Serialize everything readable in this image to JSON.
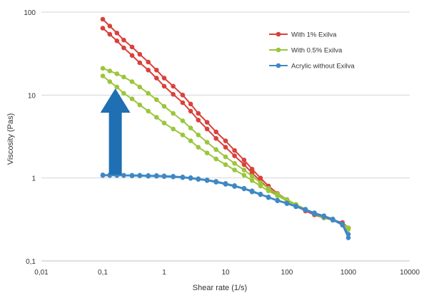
{
  "chart_data": {
    "type": "line",
    "xlabel": "Shear rate (1/s)",
    "ylabel": "Viscosity (Pas)",
    "x_scale": "log",
    "y_scale": "log",
    "xlim": [
      0.01,
      10000
    ],
    "ylim": [
      0.1,
      100
    ],
    "x_tick_labels": [
      "0,01",
      "0,1",
      "1",
      "10",
      "100",
      "1000",
      "10000"
    ],
    "y_tick_labels": [
      "0,1",
      "1",
      "10",
      "100"
    ],
    "grid": "horizontal",
    "legend_position": "top-right",
    "series": [
      {
        "name": "With 1% Exilva",
        "color": "#d9413b",
        "curves": [
          [
            [
              0.1,
              82
            ],
            [
              0.13,
              68
            ],
            [
              0.17,
              56
            ],
            [
              0.22,
              46
            ],
            [
              0.3,
              38
            ],
            [
              0.4,
              31
            ],
            [
              0.55,
              25
            ],
            [
              0.75,
              20
            ],
            [
              1,
              16
            ],
            [
              1.4,
              12.8
            ],
            [
              2,
              10
            ],
            [
              2.7,
              7.8
            ],
            [
              3.6,
              6
            ],
            [
              5,
              4.7
            ],
            [
              7,
              3.6
            ],
            [
              10,
              2.8
            ],
            [
              14,
              2.15
            ],
            [
              20,
              1.65
            ],
            [
              27,
              1.28
            ],
            [
              37,
              1
            ],
            [
              50,
              0.8
            ],
            [
              70,
              0.65
            ],
            [
              100,
              0.55
            ],
            [
              140,
              0.47
            ],
            [
              200,
              0.41
            ],
            [
              280,
              0.36
            ],
            [
              400,
              0.33
            ],
            [
              560,
              0.31
            ],
            [
              800,
              0.29
            ],
            [
              1000,
              0.25
            ]
          ],
          [
            [
              0.1,
              64
            ],
            [
              0.13,
              54
            ],
            [
              0.17,
              45
            ],
            [
              0.22,
              37
            ],
            [
              0.3,
              30
            ],
            [
              0.4,
              24.5
            ],
            [
              0.55,
              20
            ],
            [
              0.75,
              16
            ],
            [
              1,
              12.8
            ],
            [
              1.4,
              10.2
            ],
            [
              2,
              8.1
            ],
            [
              2.7,
              6.4
            ],
            [
              3.6,
              5
            ],
            [
              5,
              3.9
            ],
            [
              7,
              3
            ],
            [
              10,
              2.35
            ],
            [
              14,
              1.85
            ],
            [
              20,
              1.45
            ],
            [
              27,
              1.15
            ],
            [
              37,
              0.92
            ],
            [
              50,
              0.75
            ],
            [
              70,
              0.62
            ],
            [
              100,
              0.53
            ],
            [
              140,
              0.46
            ],
            [
              200,
              0.4
            ],
            [
              280,
              0.36
            ],
            [
              400,
              0.33
            ],
            [
              560,
              0.31
            ],
            [
              800,
              0.29
            ],
            [
              1000,
              0.25
            ]
          ]
        ]
      },
      {
        "name": "With 0.5% Exilva",
        "color": "#9bc63b",
        "curves": [
          [
            [
              0.1,
              21
            ],
            [
              0.13,
              19.5
            ],
            [
              0.17,
              18
            ],
            [
              0.22,
              16.5
            ],
            [
              0.3,
              14.5
            ],
            [
              0.4,
              12.5
            ],
            [
              0.55,
              10.5
            ],
            [
              0.75,
              8.8
            ],
            [
              1,
              7.3
            ],
            [
              1.4,
              6
            ],
            [
              2,
              4.9
            ],
            [
              2.7,
              4
            ],
            [
              3.6,
              3.3
            ],
            [
              5,
              2.7
            ],
            [
              7,
              2.2
            ],
            [
              10,
              1.8
            ],
            [
              14,
              1.5
            ],
            [
              20,
              1.25
            ],
            [
              27,
              1.05
            ],
            [
              37,
              0.88
            ],
            [
              50,
              0.75
            ],
            [
              70,
              0.64
            ],
            [
              100,
              0.55
            ],
            [
              140,
              0.48
            ],
            [
              200,
              0.42
            ],
            [
              280,
              0.37
            ],
            [
              400,
              0.34
            ],
            [
              560,
              0.31
            ],
            [
              800,
              0.28
            ],
            [
              1000,
              0.25
            ]
          ],
          [
            [
              0.1,
              17
            ],
            [
              0.13,
              14.5
            ],
            [
              0.17,
              12.5
            ],
            [
              0.22,
              10.5
            ],
            [
              0.3,
              9
            ],
            [
              0.4,
              7.6
            ],
            [
              0.55,
              6.4
            ],
            [
              0.75,
              5.4
            ],
            [
              1,
              4.6
            ],
            [
              1.4,
              3.9
            ],
            [
              2,
              3.3
            ],
            [
              2.7,
              2.8
            ],
            [
              3.6,
              2.35
            ],
            [
              5,
              2
            ],
            [
              7,
              1.7
            ],
            [
              10,
              1.45
            ],
            [
              14,
              1.25
            ],
            [
              20,
              1.08
            ],
            [
              27,
              0.93
            ],
            [
              37,
              0.8
            ],
            [
              50,
              0.7
            ],
            [
              70,
              0.61
            ],
            [
              100,
              0.53
            ],
            [
              140,
              0.46
            ],
            [
              200,
              0.41
            ],
            [
              280,
              0.37
            ],
            [
              400,
              0.33
            ],
            [
              560,
              0.31
            ],
            [
              800,
              0.28
            ],
            [
              1000,
              0.24
            ]
          ]
        ]
      },
      {
        "name": "Acrylic without Exilva",
        "color": "#3f88c5",
        "curves": [
          [
            [
              0.1,
              1.09
            ],
            [
              0.13,
              1.09
            ],
            [
              0.17,
              1.09
            ],
            [
              0.22,
              1.08
            ],
            [
              0.3,
              1.08
            ],
            [
              0.4,
              1.08
            ],
            [
              0.55,
              1.07
            ],
            [
              0.75,
              1.07
            ],
            [
              1,
              1.06
            ],
            [
              1.4,
              1.05
            ],
            [
              2,
              1.03
            ],
            [
              2.7,
              1.01
            ],
            [
              3.6,
              0.98
            ],
            [
              5,
              0.95
            ],
            [
              7,
              0.91
            ],
            [
              10,
              0.86
            ],
            [
              14,
              0.81
            ],
            [
              20,
              0.75
            ],
            [
              27,
              0.7
            ],
            [
              37,
              0.64
            ],
            [
              50,
              0.59
            ],
            [
              70,
              0.54
            ],
            [
              100,
              0.5
            ],
            [
              140,
              0.46
            ],
            [
              200,
              0.42
            ],
            [
              280,
              0.38
            ],
            [
              400,
              0.35
            ],
            [
              560,
              0.32
            ],
            [
              800,
              0.28
            ],
            [
              1000,
              0.21
            ]
          ],
          [
            [
              0.1,
              1.07
            ],
            [
              0.13,
              1.07
            ],
            [
              0.17,
              1.07
            ],
            [
              0.22,
              1.07
            ],
            [
              0.3,
              1.06
            ],
            [
              0.4,
              1.06
            ],
            [
              0.55,
              1.05
            ],
            [
              0.75,
              1.05
            ],
            [
              1,
              1.04
            ],
            [
              1.4,
              1.03
            ],
            [
              2,
              1.01
            ],
            [
              2.7,
              0.99
            ],
            [
              3.6,
              0.96
            ],
            [
              5,
              0.93
            ],
            [
              7,
              0.89
            ],
            [
              10,
              0.84
            ],
            [
              14,
              0.79
            ],
            [
              20,
              0.74
            ],
            [
              27,
              0.68
            ],
            [
              37,
              0.63
            ],
            [
              50,
              0.58
            ],
            [
              70,
              0.53
            ],
            [
              100,
              0.49
            ],
            [
              140,
              0.45
            ],
            [
              200,
              0.41
            ],
            [
              280,
              0.37
            ],
            [
              400,
              0.34
            ],
            [
              560,
              0.31
            ],
            [
              800,
              0.27
            ],
            [
              1000,
              0.19
            ]
          ]
        ]
      }
    ],
    "annotation": {
      "type": "arrow-up",
      "color": "#1f6fb2",
      "x": 0.16,
      "y_from": 1.1,
      "y_to": 12
    }
  }
}
